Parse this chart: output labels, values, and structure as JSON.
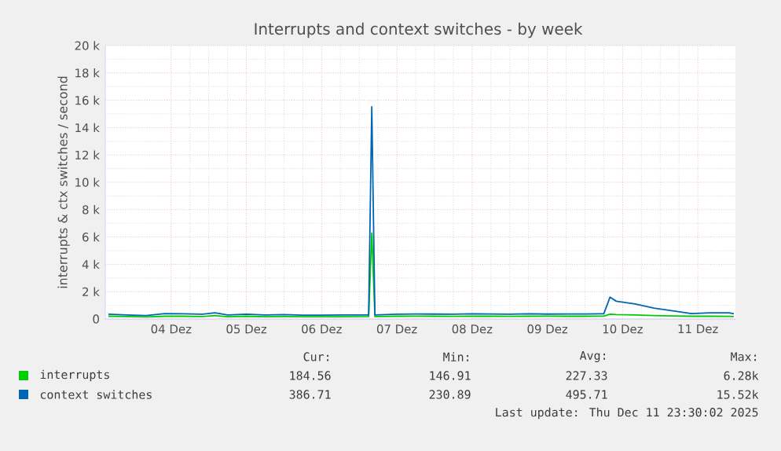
{
  "chart_data": {
    "type": "line",
    "title": "Interrupts and context switches - by week",
    "ylabel": "interrupts & ctx switches / second",
    "x": [
      "2025-12-03T16:00",
      "2025-12-03T22:00",
      "2025-12-04T04:00",
      "2025-12-04T10:00",
      "2025-12-04T16:00",
      "2025-12-04T22:00",
      "2025-12-05T02:00",
      "2025-12-05T06:00",
      "2025-12-05T12:00",
      "2025-12-05T18:00",
      "2025-12-06T00:00",
      "2025-12-06T06:00",
      "2025-12-06T12:00",
      "2025-12-06T18:00",
      "2025-12-07T03:00",
      "2025-12-07T04:00",
      "2025-12-07T05:00",
      "2025-12-07T12:00",
      "2025-12-07T18:00",
      "2025-12-08T00:00",
      "2025-12-08T06:00",
      "2025-12-08T12:00",
      "2025-12-08T18:00",
      "2025-12-09T00:00",
      "2025-12-09T06:00",
      "2025-12-09T12:00",
      "2025-12-09T18:00",
      "2025-12-10T00:00",
      "2025-12-10T06:00",
      "2025-12-10T08:00",
      "2025-12-10T10:00",
      "2025-12-10T16:00",
      "2025-12-10T22:00",
      "2025-12-11T04:00",
      "2025-12-11T10:00",
      "2025-12-11T16:00",
      "2025-12-11T22:00",
      "2025-12-11T23:30"
    ],
    "series": [
      {
        "name": "interrupts",
        "color": "#00cc00",
        "values": [
          200,
          180,
          150,
          200,
          200,
          180,
          250,
          170,
          200,
          170,
          180,
          160,
          160,
          170,
          180,
          6280,
          180,
          200,
          210,
          200,
          190,
          200,
          200,
          190,
          200,
          210,
          200,
          200,
          210,
          350,
          320,
          300,
          250,
          220,
          200,
          200,
          190,
          185
        ]
      },
      {
        "name": "context switches",
        "color": "#0066b3",
        "values": [
          350,
          300,
          250,
          400,
          380,
          350,
          450,
          300,
          350,
          300,
          320,
          280,
          280,
          300,
          300,
          15520,
          300,
          350,
          370,
          360,
          350,
          380,
          370,
          350,
          380,
          360,
          370,
          370,
          380,
          1600,
          1300,
          1100,
          800,
          600,
          400,
          450,
          450,
          387
        ]
      }
    ],
    "xlim": [
      "2025-12-03T15:00",
      "2025-12-12T00:00"
    ],
    "xticks": [
      {
        "value": "2025-12-04T12:00",
        "label": "04 Dez"
      },
      {
        "value": "2025-12-05T12:00",
        "label": "05 Dez"
      },
      {
        "value": "2025-12-06T12:00",
        "label": "06 Dez"
      },
      {
        "value": "2025-12-07T12:00",
        "label": "07 Dez"
      },
      {
        "value": "2025-12-08T12:00",
        "label": "08 Dez"
      },
      {
        "value": "2025-12-09T12:00",
        "label": "09 Dez"
      },
      {
        "value": "2025-12-10T12:00",
        "label": "10 Dez"
      },
      {
        "value": "2025-12-11T12:00",
        "label": "11 Dez"
      }
    ],
    "ylim": [
      0,
      20000
    ],
    "yticks": [
      0,
      {
        "value": 2000,
        "label": "2 k"
      },
      {
        "value": 4000,
        "label": "4 k"
      },
      {
        "value": 6000,
        "label": "6 k"
      },
      {
        "value": 8000,
        "label": "8 k"
      },
      {
        "value": 10000,
        "label": "10 k"
      },
      {
        "value": 12000,
        "label": "12 k"
      },
      {
        "value": 14000,
        "label": "14 k"
      },
      {
        "value": 16000,
        "label": "16 k"
      },
      {
        "value": 18000,
        "label": "18 k"
      },
      {
        "value": 20000,
        "label": "20 k"
      }
    ],
    "grid": true,
    "legend": "bottom",
    "annotations": [
      "Cur:",
      "Min:",
      "Avg:",
      "Max:",
      "184.56",
      "146.91",
      "227.33",
      "6.28k",
      "386.71",
      "230.89",
      "495.71",
      "15.52k",
      "Last update: Thu Dec 11 23:30:02 2025"
    ]
  }
}
